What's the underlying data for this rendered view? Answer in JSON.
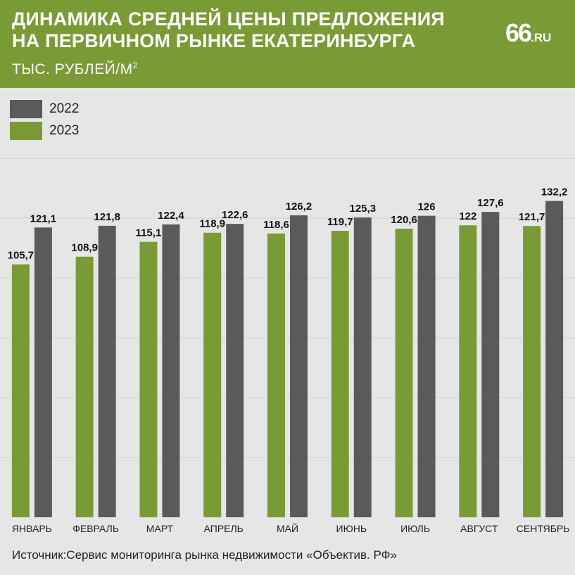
{
  "header": {
    "title_line1": "ДИНАМИКА СРЕДНЕЙ ЦЕНЫ ПРЕДЛОЖЕНИЯ",
    "title_line2": "НА ПЕРВИЧНОМ РЫНКЕ ЕКАТЕРИНБУРГА",
    "unit_label": "ТЫС. РУБЛЕЙ/М",
    "unit_superscript": "2",
    "logo_main": "66",
    "logo_suffix": ".RU",
    "background_color": "#7a9a35"
  },
  "legend": [
    {
      "label": "2022",
      "color": "#5a5a5a"
    },
    {
      "label": "2023",
      "color": "#7a9a35"
    }
  ],
  "source": "Источник:Сервис мониторинга рынка недвижимости «Объектив. РФ»",
  "chart_data": {
    "type": "bar",
    "title": "ДИНАМИКА СРЕДНЕЙ ЦЕНЫ ПРЕДЛОЖЕНИЯ НА ПЕРВИЧНОМ РЫНКЕ ЕКАТЕРИНБУРГА",
    "ylabel": "ТЫС. РУБЛЕЙ/М2",
    "xlabel": "",
    "categories": [
      "ЯНВАРЬ",
      "ФЕВРАЛЬ",
      "МАРТ",
      "АПРЕЛЬ",
      "МАЙ",
      "ИЮНЬ",
      "ИЮЛЬ",
      "АВГУСТ",
      "СЕНТЯБРЬ"
    ],
    "series": [
      {
        "name": "2023",
        "color": "#7a9a35",
        "values": [
          105.7,
          108.9,
          115.1,
          118.9,
          118.6,
          119.7,
          120.6,
          122,
          121.7
        ],
        "labels": [
          "105,7",
          "108,9",
          "115,1",
          "118,9",
          "118,6",
          "119,7",
          "120,6",
          "122",
          "121,7"
        ]
      },
      {
        "name": "2022",
        "color": "#5a5a5a",
        "values": [
          121.1,
          121.8,
          122.4,
          122.6,
          126.2,
          125.3,
          126,
          127.6,
          132.2
        ],
        "labels": [
          "121,1",
          "121,8",
          "122,4",
          "122,6",
          "126,2",
          "125,3",
          "126",
          "127,6",
          "132,2"
        ]
      }
    ],
    "ylim": [
      0,
      150
    ],
    "grid": true,
    "legend_position": "top-left"
  }
}
